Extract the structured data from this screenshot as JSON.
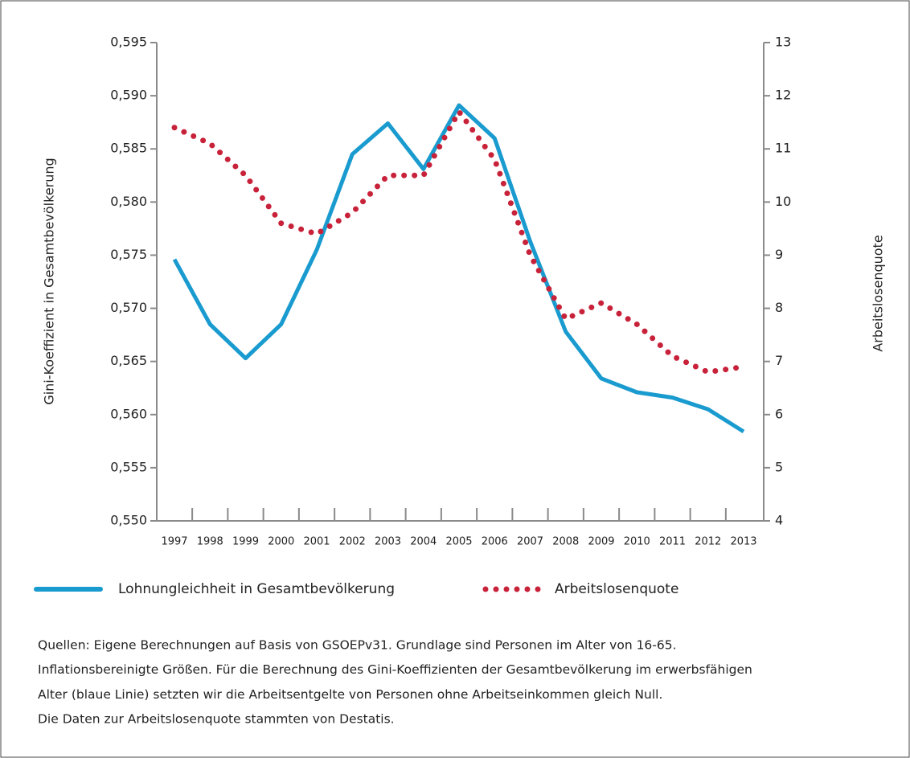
{
  "chart_data": {
    "type": "line",
    "categories": [
      "1997",
      "1998",
      "1999",
      "2000",
      "2001",
      "2002",
      "2003",
      "2004",
      "2005",
      "2006",
      "2007",
      "2008",
      "2009",
      "2010",
      "2011",
      "2012",
      "2013"
    ],
    "series": [
      {
        "name": "Lohnungleichheit in Gesamtbevölkerung",
        "color": "#1a9bcf",
        "style": "solid",
        "values": [
          0.5746,
          0.5685,
          0.5653,
          0.5685,
          0.5755,
          0.5845,
          0.5874,
          0.5831,
          0.5891,
          0.586,
          0.5763,
          0.5678,
          0.5634,
          0.5621,
          0.5616,
          0.5605,
          0.5584
        ]
      },
      {
        "name": "Arbeitslosenquote",
        "color": "#c8223a",
        "style": "dotted",
        "axis": "y2",
        "values": [
          11.4,
          11.1,
          10.5,
          9.6,
          9.4,
          9.8,
          10.5,
          10.5,
          11.7,
          10.8,
          9.0,
          7.8,
          8.1,
          7.7,
          7.1,
          6.8,
          6.9
        ]
      }
    ],
    "ylabel": "Gini-Koeffizient in Gesamtbevölkerung",
    "y2label": "Arbeitslosenquote",
    "ylim": [
      0.55,
      0.595
    ],
    "yticks": [
      {
        "value": 0.55,
        "label": "0,550"
      },
      {
        "value": 0.555,
        "label": "0,555"
      },
      {
        "value": 0.56,
        "label": "0,560"
      },
      {
        "value": 0.565,
        "label": "0,565"
      },
      {
        "value": 0.57,
        "label": "0,570"
      },
      {
        "value": 0.575,
        "label": "0,575"
      },
      {
        "value": 0.58,
        "label": "0,580"
      },
      {
        "value": 0.585,
        "label": "0,585"
      },
      {
        "value": 0.59,
        "label": "0,590"
      },
      {
        "value": 0.595,
        "label": "0,595"
      }
    ],
    "y2lim": [
      4,
      13
    ],
    "y2ticks": [
      4,
      5,
      6,
      7,
      8,
      9,
      10,
      11,
      12,
      13
    ],
    "grid": false,
    "legend": "bottom",
    "notes": [
      "Quellen: Eigene Berechnungen auf Basis von GSOEPv31. Grundlage sind Personen im Alter von 16-65.",
      "Inflationsbereinigte Größen. Für die Berechnung des Gini-Koeffizienten der Gesamtbevölkerung im erwerbsfähigen",
      "Alter (blaue Linie) setzten wir die Arbeitsentgelte von Personen ohne Arbeitseinkommen gleich Null.",
      "Die Daten zur Arbeitslosenquote stammten von Destatis."
    ]
  }
}
